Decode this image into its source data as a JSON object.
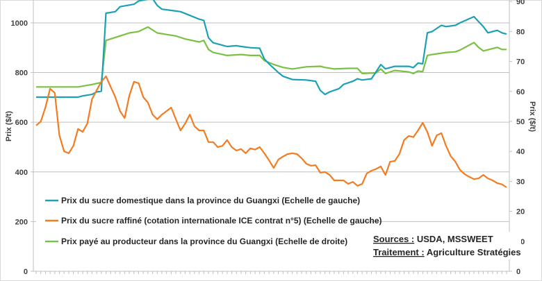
{
  "chart_data": {
    "type": "line",
    "xlabel": "",
    "ylabel_left": "Prix ($/t)",
    "ylabel_right": "Prix ($/t)",
    "x_range": [
      0,
      101
    ],
    "ylim_left": [
      0,
      1092
    ],
    "ylim_right": [
      0,
      90.5
    ],
    "yticks_left": [
      "0",
      "200",
      "400",
      "600",
      "800",
      "1000"
    ],
    "yticks_left_values": [
      0,
      200,
      400,
      600,
      800,
      1000
    ],
    "yticks_right": [
      "0",
      "10",
      "20",
      "30",
      "40",
      "50",
      "60",
      "70",
      "80",
      "90"
    ],
    "yticks_right_values": [
      0,
      10,
      20,
      30,
      40,
      50,
      60,
      70,
      80,
      90
    ],
    "grid": true,
    "legend_placement": "bottom-left",
    "series": [
      {
        "name": "Prix du sucre domestique dans la province du Guangxi (Echelle de gauche)",
        "axis": "left",
        "color": "#1ba1b3",
        "points": [
          [
            0,
            701
          ],
          [
            9,
            701
          ],
          [
            10,
            706
          ],
          [
            12,
            712
          ],
          [
            13,
            722
          ],
          [
            14,
            725
          ],
          [
            15,
            1039
          ],
          [
            17,
            1045
          ],
          [
            18,
            1065
          ],
          [
            21,
            1075
          ],
          [
            22,
            1088
          ],
          [
            24,
            1095
          ],
          [
            25,
            1098
          ],
          [
            26,
            1070
          ],
          [
            27,
            1055
          ],
          [
            29,
            1050
          ],
          [
            31,
            1045
          ],
          [
            33,
            1030
          ],
          [
            35,
            1015
          ],
          [
            36,
            1010
          ],
          [
            37,
            940
          ],
          [
            38,
            920
          ],
          [
            40,
            910
          ],
          [
            41,
            905
          ],
          [
            43,
            908
          ],
          [
            44,
            905
          ],
          [
            46,
            900
          ],
          [
            48,
            898
          ],
          [
            49,
            855
          ],
          [
            50,
            835
          ],
          [
            52,
            800
          ],
          [
            53,
            785
          ],
          [
            55,
            772
          ],
          [
            58,
            770
          ],
          [
            60,
            765
          ],
          [
            61,
            728
          ],
          [
            62,
            712
          ],
          [
            63,
            722
          ],
          [
            65,
            735
          ],
          [
            66,
            752
          ],
          [
            68,
            765
          ],
          [
            69,
            775
          ],
          [
            70,
            770
          ],
          [
            72,
            775
          ],
          [
            74,
            832
          ],
          [
            75,
            815
          ],
          [
            77,
            825
          ],
          [
            80,
            825
          ],
          [
            81,
            820
          ],
          [
            82,
            838
          ],
          [
            83,
            835
          ],
          [
            84,
            960
          ],
          [
            85,
            965
          ],
          [
            87,
            990
          ],
          [
            88,
            985
          ],
          [
            90,
            990
          ],
          [
            91,
            1000
          ],
          [
            94,
            1025
          ],
          [
            95,
            1005
          ],
          [
            96,
            985
          ],
          [
            97,
            960
          ],
          [
            99,
            970
          ],
          [
            100,
            960
          ],
          [
            101,
            955
          ]
        ]
      },
      {
        "name": "Prix du sucre raffiné (cotation internationale ICE contrat n°5) (Echelle de gauche)",
        "axis": "left",
        "color": "#f47b20",
        "values": [
          587,
          603,
          660,
          735,
          718,
          547,
          483,
          475,
          505,
          573,
          561,
          595,
          693,
          729,
          763,
          785,
          743,
          701,
          645,
          617,
          707,
          763,
          757,
          701,
          679,
          631,
          612,
          631,
          645,
          659,
          612,
          567,
          595,
          631,
          584,
          567,
          567,
          520,
          520,
          500,
          505,
          528,
          500,
          486,
          492,
          475,
          495,
          490,
          500,
          475,
          447,
          416,
          450,
          462,
          472,
          475,
          472,
          455,
          433,
          425,
          427,
          397,
          400,
          388,
          366,
          366,
          366,
          352,
          360,
          344,
          352,
          394,
          405,
          412,
          422,
          388,
          441,
          444,
          472,
          528,
          545,
          540,
          567,
          598,
          561,
          505,
          547,
          556,
          505,
          464,
          441,
          408,
          391,
          380,
          371,
          374,
          388,
          374,
          366,
          355,
          350,
          338
        ]
      },
      {
        "name": "Prix payé au producteur dans la province du Guangxi (Echelle de droite)",
        "axis": "right",
        "color": "#7ac143",
        "points": [
          [
            0,
            61.5
          ],
          [
            9,
            61.5
          ],
          [
            12,
            62.3
          ],
          [
            14,
            63
          ],
          [
            15,
            77
          ],
          [
            18,
            78.5
          ],
          [
            20,
            79.5
          ],
          [
            22,
            80
          ],
          [
            24,
            81.5
          ],
          [
            26,
            79.5
          ],
          [
            28,
            79
          ],
          [
            30,
            78.5
          ],
          [
            32,
            77.5
          ],
          [
            35,
            76.5
          ],
          [
            36,
            77
          ],
          [
            37,
            74
          ],
          [
            38,
            73
          ],
          [
            41,
            72
          ],
          [
            44,
            72.3
          ],
          [
            46,
            72
          ],
          [
            48,
            72
          ],
          [
            49,
            70.3
          ],
          [
            51,
            69
          ],
          [
            53,
            68
          ],
          [
            55,
            67.5
          ],
          [
            58,
            68.2
          ],
          [
            61,
            68.4
          ],
          [
            62,
            68
          ],
          [
            64,
            67.5
          ],
          [
            67,
            67.7
          ],
          [
            69,
            67.7
          ],
          [
            70,
            66
          ],
          [
            73,
            66.2
          ],
          [
            74,
            67.5
          ],
          [
            75,
            66
          ],
          [
            77,
            67
          ],
          [
            80,
            66.5
          ],
          [
            81,
            66
          ],
          [
            82,
            66.8
          ],
          [
            83,
            66.6
          ],
          [
            84,
            72
          ],
          [
            85,
            72.3
          ],
          [
            88,
            73
          ],
          [
            90,
            73.2
          ],
          [
            91,
            73.8
          ],
          [
            94,
            76.3
          ],
          [
            95,
            74.7
          ],
          [
            96,
            73.5
          ],
          [
            99,
            74.7
          ],
          [
            100,
            74
          ],
          [
            101,
            74
          ]
        ]
      }
    ]
  },
  "sources": {
    "sources_label": "Sources :",
    "sources_value": " USDA, MSSWEET",
    "treatment_label": "Traitement :",
    "treatment_value": " Agriculture Stratégies"
  }
}
